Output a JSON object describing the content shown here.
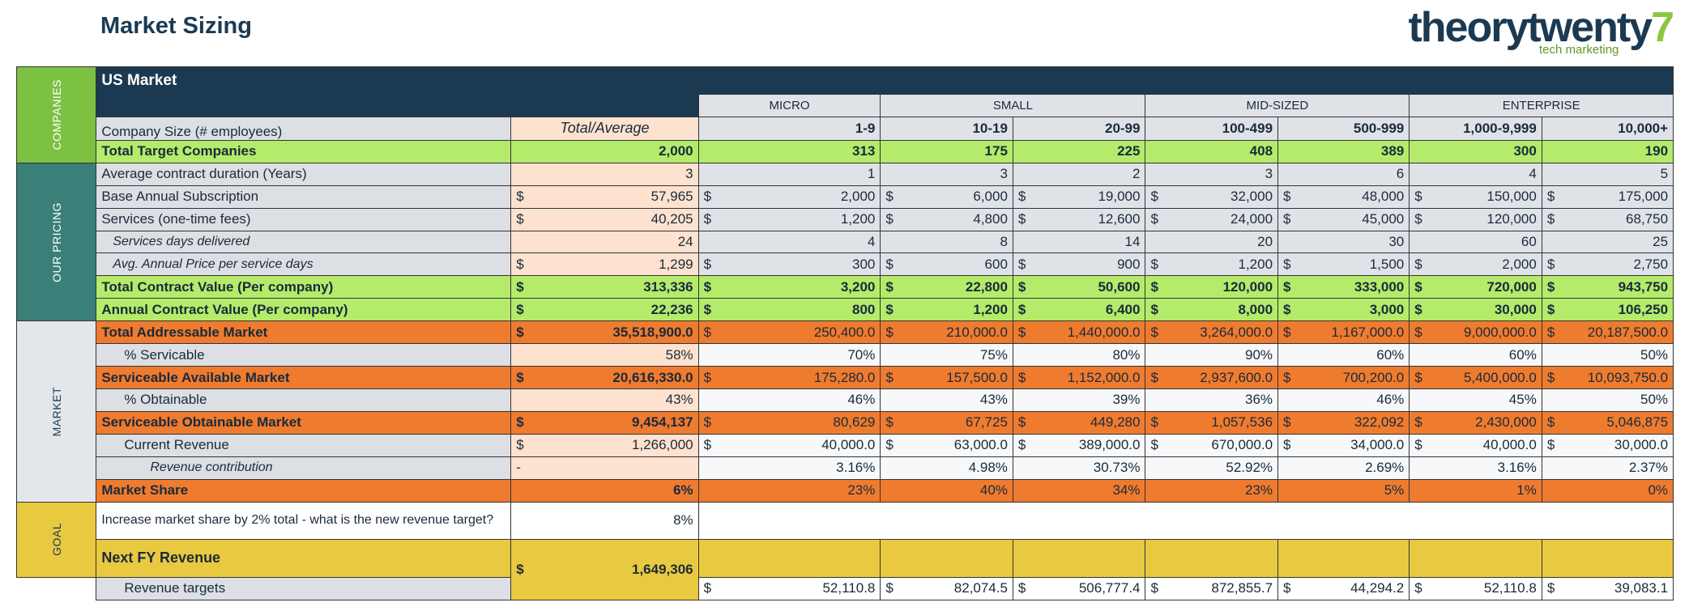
{
  "header": {
    "title": "Market Sizing",
    "logo_main": "theorytwenty",
    "logo_accent": "7",
    "logo_tagline": "tech marketing"
  },
  "table": {
    "title": "US Market",
    "side_labels": [
      "COMPANIES",
      "OUR PRICING",
      "MARKET",
      "GOAL"
    ],
    "groups": [
      "MICRO",
      "SMALL",
      "MID-SIZED",
      "ENTERPRISE"
    ],
    "size_label": "Company Size (# employees)",
    "total_header": "Total/Average",
    "sizes": [
      "1-9",
      "10-19",
      "20-99",
      "100-499",
      "500-999",
      "1,000-9,999",
      "10,000+"
    ],
    "rows": [
      {
        "label": "Total Target Companies",
        "style": "green",
        "total": "2,000",
        "values": [
          "313",
          "175",
          "225",
          "408",
          "389",
          "300",
          "190"
        ]
      },
      {
        "label": "Average contract duration (Years)",
        "style": "pricing",
        "total": "3",
        "values": [
          "1",
          "3",
          "2",
          "3",
          "6",
          "4",
          "5"
        ]
      },
      {
        "label": "Base Annual Subscription",
        "style": "pricing",
        "currency": "$",
        "total": "57,965",
        "values": [
          "2,000",
          "6,000",
          "19,000",
          "32,000",
          "48,000",
          "150,000",
          "175,000"
        ]
      },
      {
        "label": "Services (one-time fees)",
        "style": "pricing",
        "currency": "$",
        "total": "40,205",
        "values": [
          "1,200",
          "4,800",
          "12,600",
          "24,000",
          "45,000",
          "120,000",
          "68,750"
        ]
      },
      {
        "label": "Services days delivered",
        "style": "pricing-sub",
        "total": "24",
        "values": [
          "4",
          "8",
          "14",
          "20",
          "30",
          "60",
          "25"
        ]
      },
      {
        "label": "Avg. Annual Price per service days",
        "style": "pricing-sub",
        "currency": "$",
        "total": "1,299",
        "values": [
          "300",
          "600",
          "900",
          "1,200",
          "1,500",
          "2,000",
          "2,750"
        ]
      },
      {
        "label": "Total Contract Value (Per company)",
        "style": "green",
        "currency": "$",
        "total": "313,336",
        "values": [
          "3,200",
          "22,800",
          "50,600",
          "120,000",
          "333,000",
          "720,000",
          "943,750"
        ]
      },
      {
        "label": "Annual Contract Value (Per company)",
        "style": "green",
        "currency": "$",
        "total": "22,236",
        "values": [
          "800",
          "1,200",
          "6,400",
          "8,000",
          "3,000",
          "30,000",
          "106,250"
        ]
      },
      {
        "label": "Total Addressable Market",
        "style": "orange",
        "currency": "$",
        "total": "35,518,900.0",
        "values": [
          "250,400.0",
          "210,000.0",
          "1,440,000.0",
          "3,264,000.0",
          "1,167,000.0",
          "9,000,000.0",
          "20,187,500.0"
        ]
      },
      {
        "label": "% Servicable",
        "style": "market",
        "total": "58%",
        "values": [
          "70%",
          "75%",
          "80%",
          "90%",
          "60%",
          "60%",
          "50%"
        ]
      },
      {
        "label": "Serviceable Available Market",
        "style": "orange",
        "currency": "$",
        "total": "20,616,330.0",
        "values": [
          "175,280.0",
          "157,500.0",
          "1,152,000.0",
          "2,937,600.0",
          "700,200.0",
          "5,400,000.0",
          "10,093,750.0"
        ]
      },
      {
        "label": "% Obtainable",
        "style": "market",
        "total": "43%",
        "values": [
          "46%",
          "43%",
          "39%",
          "36%",
          "46%",
          "45%",
          "50%"
        ]
      },
      {
        "label": "Serviceable Obtainable Market",
        "style": "orange",
        "currency": "$",
        "total": "9,454,137",
        "values": [
          "80,629",
          "67,725",
          "449,280",
          "1,057,536",
          "322,092",
          "2,430,000",
          "5,046,875"
        ]
      },
      {
        "label": "Current Revenue",
        "style": "market",
        "currency": "$",
        "total": "1,266,000",
        "values": [
          "40,000.0",
          "63,000.0",
          "389,000.0",
          "670,000.0",
          "34,000.0",
          "40,000.0",
          "30,000.0"
        ]
      },
      {
        "label": "Revenue contribution",
        "style": "market-sub",
        "total": "-",
        "values": [
          "3.16%",
          "4.98%",
          "30.73%",
          "52.92%",
          "2.69%",
          "3.16%",
          "2.37%"
        ]
      },
      {
        "label": "Market Share",
        "style": "orange",
        "total": "6%",
        "values": [
          "23%",
          "40%",
          "34%",
          "23%",
          "5%",
          "1%",
          "0%"
        ]
      }
    ],
    "goal": {
      "label": "Increase market share by 2% total - what is the new revenue target?",
      "total": "8%"
    },
    "next_fy": {
      "label": "Next FY Revenue",
      "currency": "$",
      "total": "1,649,306"
    },
    "targets": {
      "label": "Revenue targets",
      "currency": "$",
      "values": [
        "52,110.8",
        "82,074.5",
        "506,777.4",
        "872,855.7",
        "44,294.2",
        "52,110.8",
        "39,083.1"
      ]
    }
  }
}
